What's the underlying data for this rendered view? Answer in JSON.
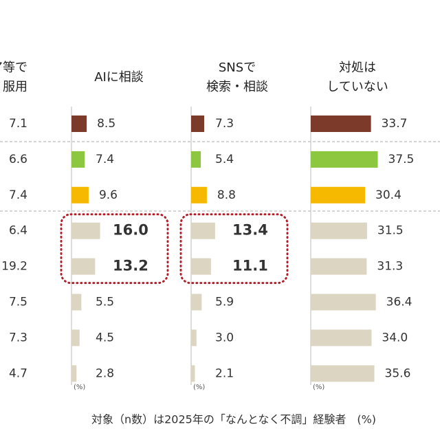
{
  "chart_data": [
    {
      "type": "labels",
      "title_lines": [
        "トア等で",
        "入・服用"
      ],
      "labels": [
        "7.1",
        "6.6",
        "7.4",
        "6.4",
        "19.2",
        "7.5",
        "7.3",
        "4.7"
      ]
    },
    {
      "type": "hbar",
      "title_lines": [
        "AIに相談"
      ],
      "values": [
        8.5,
        7.4,
        9.6,
        16.0,
        13.2,
        5.5,
        4.5,
        2.8
      ],
      "value_labels": [
        "8.5",
        "7.4",
        "9.6",
        "16.0",
        "13.2",
        "5.5",
        "4.5",
        "2.8"
      ],
      "colors": [
        "#7b3a2a",
        "#8dc63f",
        "#f6b900",
        "#dbd5c2",
        "#dbd5c2",
        "#dbd5c2",
        "#dbd5c2",
        "#dbd5c2"
      ],
      "highlight": [
        3,
        4
      ],
      "xlim": [
        0,
        40
      ],
      "unit": "(%)"
    },
    {
      "type": "hbar",
      "title_lines": [
        "SNSで",
        "検索・相談"
      ],
      "values": [
        7.3,
        5.4,
        8.8,
        13.4,
        11.1,
        5.9,
        3.0,
        2.1
      ],
      "value_labels": [
        "7.3",
        "5.4",
        "8.8",
        "13.4",
        "11.1",
        "5.9",
        "3.0",
        "2.1"
      ],
      "colors": [
        "#7b3a2a",
        "#8dc63f",
        "#f6b900",
        "#dbd5c2",
        "#dbd5c2",
        "#dbd5c2",
        "#dbd5c2",
        "#dbd5c2"
      ],
      "highlight": [
        3,
        4
      ],
      "xlim": [
        0,
        40
      ],
      "unit": "(%)"
    },
    {
      "type": "hbar",
      "title_lines": [
        "対処は",
        "していない"
      ],
      "values": [
        33.7,
        37.5,
        30.4,
        31.5,
        31.3,
        36.4,
        34.0,
        35.6
      ],
      "value_labels": [
        "33.7",
        "37.5",
        "30.4",
        "31.5",
        "31.3",
        "36.4",
        "34.0",
        "35.6"
      ],
      "colors": [
        "#7b3a2a",
        "#8dc63f",
        "#f6b900",
        "#dbd5c2",
        "#dbd5c2",
        "#dbd5c2",
        "#dbd5c2",
        "#dbd5c2"
      ],
      "highlight": [],
      "xlim": [
        0,
        40
      ],
      "unit": "(%)"
    }
  ],
  "footer": "対象（n数）は2025年の「なんとなく不調」経験者　(%)"
}
